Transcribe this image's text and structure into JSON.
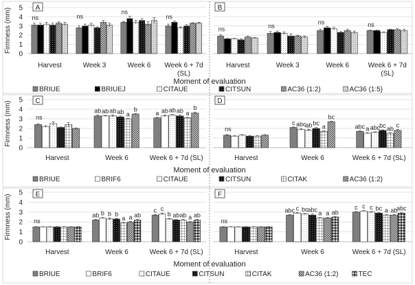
{
  "chart_data": {
    "type": "bar",
    "ylabel": "Firmness (mm)",
    "xlabel": "Moment of evaluation",
    "ylim": [
      0,
      5
    ],
    "yticks": [
      "0",
      "1",
      "2",
      "3",
      "4",
      "5"
    ],
    "grid": true,
    "legend_position": "bottom",
    "rows": [
      {
        "xlabel": "Moment of evaluation",
        "legend": [
          "BRIUE",
          "BRIUEJ",
          "CITAUE",
          "CITSUN",
          "AC36 (1:2)",
          "AC36 (1:5)"
        ],
        "panels": [
          {
            "label": "A",
            "categories": [
              "Harvest",
              "Week 3",
              "Week 6",
              "Week 6 + 7d (SL)"
            ],
            "series": [
              {
                "name": "BRIUE",
                "values": [
                  3.1,
                  2.8,
                  3.4,
                  3.0
                ],
                "errors": [
                  0.2,
                  0.2,
                  0.1,
                  0.2
                ]
              },
              {
                "name": "BRIUEJ",
                "values": [
                  3.1,
                  3.0,
                  3.8,
                  3.4
                ],
                "errors": [
                  0.2,
                  0.2,
                  0.25,
                  0.15
                ]
              },
              {
                "name": "CITAUE",
                "values": [
                  3.2,
                  3.1,
                  3.4,
                  2.8
                ],
                "errors": [
                  0.2,
                  0.2,
                  0.2,
                  0.1
                ]
              },
              {
                "name": "CITSUN",
                "values": [
                  3.1,
                  2.8,
                  3.6,
                  3.0
                ],
                "errors": [
                  0.2,
                  0.1,
                  0.2,
                  0.15
                ]
              },
              {
                "name": "AC36 (1:2)",
                "values": [
                  3.3,
                  3.4,
                  3.2,
                  3.3
                ],
                "errors": [
                  0.15,
                  0.2,
                  0.25,
                  0.05
                ]
              },
              {
                "name": "AC36 (1:5)",
                "values": [
                  3.2,
                  3.1,
                  3.6,
                  3.3
                ],
                "errors": [
                  0.2,
                  0.2,
                  0.3,
                  0.1
                ]
              }
            ],
            "annotations": [
              [
                "ns"
              ],
              [
                "ns"
              ],
              [
                "ns"
              ],
              [
                "ns"
              ]
            ]
          },
          {
            "label": "B",
            "categories": [
              "Harvest",
              "Week 3",
              "Week 6",
              "Week 6 + 7d (SL)"
            ],
            "series": [
              {
                "name": "BRIUE",
                "values": [
                  1.9,
                  2.2,
                  2.5,
                  2.5
                ],
                "errors": [
                  0.15,
                  0.2,
                  0.15,
                  0.05
                ]
              },
              {
                "name": "BRIUEJ",
                "values": [
                  1.6,
                  2.3,
                  2.8,
                  2.5
                ],
                "errors": [
                  0.05,
                  0.15,
                  0.15,
                  0.05
                ]
              },
              {
                "name": "CITAUE",
                "values": [
                  1.6,
                  2.2,
                  2.7,
                  2.3
                ],
                "errors": [
                  0.05,
                  0.15,
                  0.15,
                  0.05
                ]
              },
              {
                "name": "CITSUN",
                "values": [
                  1.5,
                  1.9,
                  2.3,
                  2.6
                ],
                "errors": [
                  0.1,
                  0.25,
                  0.1,
                  0.05
                ]
              },
              {
                "name": "AC36 (1:2)",
                "values": [
                  1.8,
                  1.9,
                  2.5,
                  2.6
                ],
                "errors": [
                  0.1,
                  0.1,
                  0.15,
                  0.1
                ]
              },
              {
                "name": "AC36 (1:5)",
                "values": [
                  1.7,
                  1.8,
                  2.3,
                  2.5
                ],
                "errors": [
                  0.05,
                  0.1,
                  0.15,
                  0.15
                ]
              }
            ],
            "annotations": [
              [
                "ns"
              ],
              [
                "ns"
              ],
              [
                "ns"
              ],
              [
                "ns"
              ]
            ]
          }
        ]
      },
      {
        "xlabel": "Moment of evaluation",
        "legend": [
          "BRIUE",
          "BRIF6",
          "CITAUE",
          "CITSUN",
          "CITAK",
          "AC36 (1:2)"
        ],
        "panels": [
          {
            "label": "C",
            "categories": [
              "Harvest",
              "Week 6",
              "Week 6 + 7d (SL)"
            ],
            "series": [
              {
                "name": "BRIUE",
                "values": [
                  2.4,
                  3.3,
                  3.1
                ],
                "errors": [
                  0.1,
                  0.1,
                  0.05
                ]
              },
              {
                "name": "BRIF6",
                "values": [
                  2.2,
                  3.3,
                  3.3
                ],
                "errors": [
                  0.1,
                  0.05,
                  0.1
                ]
              },
              {
                "name": "CITAUE",
                "values": [
                  2.5,
                  3.3,
                  3.4
                ],
                "errors": [
                  0.2,
                  0.1,
                  0.05
                ]
              },
              {
                "name": "CITSUN",
                "values": [
                  2.1,
                  3.2,
                  3.3
                ],
                "errors": [
                  0.05,
                  0.1,
                  0.1
                ]
              },
              {
                "name": "CITAK",
                "values": [
                  2.4,
                  3.0,
                  3.1
                ],
                "errors": [
                  0.2,
                  0.05,
                  0.05
                ]
              },
              {
                "name": "AC36 (1:2)",
                "values": [
                  2.0,
                  3.5,
                  3.6
                ],
                "errors": [
                  0.05,
                  0.05,
                  0.1
                ]
              }
            ],
            "annotations": [
              [
                "ns"
              ],
              [
                "ab",
                "ab",
                "ab",
                "ab",
                "a",
                "b"
              ],
              [
                "a",
                "ab",
                "ab",
                "ab",
                "a",
                "b"
              ]
            ]
          },
          {
            "label": "D",
            "categories": [
              "Harvest",
              "Week 6",
              "Week 6 + 7d (SL)"
            ],
            "series": [
              {
                "name": "BRIUE",
                "values": [
                  1.3,
                  2.1,
                  1.7
                ],
                "errors": [
                  0.05,
                  0.05,
                  0.05
                ]
              },
              {
                "name": "BRIF6",
                "values": [
                  1.2,
                  1.9,
                  1.5
                ],
                "errors": [
                  0.05,
                  0.1,
                  0.05
                ]
              },
              {
                "name": "CITAUE",
                "values": [
                  1.3,
                  1.8,
                  1.6
                ],
                "errors": [
                  0.05,
                  0.1,
                  0.05
                ]
              },
              {
                "name": "CITSUN",
                "values": [
                  1.2,
                  2.0,
                  1.8
                ],
                "errors": [
                  0.05,
                  0.1,
                  0.05
                ]
              },
              {
                "name": "CITAK",
                "values": [
                  1.2,
                  1.7,
                  1.5
                ],
                "errors": [
                  0.05,
                  0.05,
                  0.05
                ]
              },
              {
                "name": "AC36 (1:2)",
                "values": [
                  1.3,
                  2.7,
                  1.8
                ],
                "errors": [
                  0.05,
                  0.05,
                  0.1
                ]
              }
            ],
            "annotations": [
              [
                "ns"
              ],
              [
                "c",
                "abc",
                "ab",
                "bc",
                "a",
                "bc"
              ],
              [
                "abc",
                "a",
                "abc",
                "bc",
                "ab",
                "c"
              ]
            ]
          }
        ]
      },
      {
        "xlabel": "Moment of evaluation",
        "legend": [
          "BRIUE",
          "BRIF6",
          "CITAUE",
          "CITSUN",
          "CITAK",
          "AC36 (1:2)",
          "TEC"
        ],
        "panels": [
          {
            "label": "E",
            "categories": [
              "Harvest",
              "Week 6",
              "Week 6 + 7d (SL)"
            ],
            "series": [
              {
                "name": "BRIUE",
                "values": [
                  1.5,
                  2.2,
                  2.7
                ],
                "errors": [
                  0.03,
                  0.05,
                  0.05
                ]
              },
              {
                "name": "BRIF6",
                "values": [
                  1.5,
                  2.4,
                  2.8
                ],
                "errors": [
                  0.03,
                  0.05,
                  0.1
                ]
              },
              {
                "name": "CITAUE",
                "values": [
                  1.5,
                  2.3,
                  2.3
                ],
                "errors": [
                  0.03,
                  0.1,
                  0.05
                ]
              },
              {
                "name": "CITSUN",
                "values": [
                  1.5,
                  2.3,
                  2.2
                ],
                "errors": [
                  0.03,
                  0.05,
                  0.05
                ]
              },
              {
                "name": "CITAK",
                "values": [
                  1.5,
                  1.9,
                  2.2
                ],
                "errors": [
                  0.03,
                  0.05,
                  0.05
                ]
              },
              {
                "name": "AC36 (1:2)",
                "values": [
                  1.5,
                  2.0,
                  2.0
                ],
                "errors": [
                  0.03,
                  0.05,
                  0.05
                ]
              },
              {
                "name": "TEC",
                "values": [
                  1.5,
                  2.2,
                  2.2
                ],
                "errors": [
                  0.03,
                  0.05,
                  0.05
                ]
              }
            ],
            "annotations": [
              [
                "ns"
              ],
              [
                "ab",
                "b",
                "b",
                "b",
                "a",
                "a",
                "ab"
              ],
              [
                "c",
                "c",
                "b",
                "ab",
                "ab",
                "a",
                "ab"
              ]
            ]
          },
          {
            "label": "F",
            "categories": [
              "Harvest",
              "Week 6",
              "Week 6 + 7d (SL)"
            ],
            "series": [
              {
                "name": "BRIUE",
                "values": [
                  1.5,
                  2.7,
                  3.0
                ],
                "errors": [
                  0.03,
                  0.05,
                  0.05
                ]
              },
              {
                "name": "BRIF6",
                "values": [
                  1.5,
                  2.9,
                  3.1
                ],
                "errors": [
                  0.03,
                  0.05,
                  0.05
                ]
              },
              {
                "name": "CITAUE",
                "values": [
                  1.5,
                  2.8,
                  3.0
                ],
                "errors": [
                  0.03,
                  0.05,
                  0.05
                ]
              },
              {
                "name": "CITSUN",
                "values": [
                  1.5,
                  2.7,
                  2.9
                ],
                "errors": [
                  0.03,
                  0.1,
                  0.05
                ]
              },
              {
                "name": "CITAK",
                "values": [
                  1.5,
                  2.4,
                  2.7
                ],
                "errors": [
                  0.03,
                  0.05,
                  0.05
                ]
              },
              {
                "name": "AC36 (1:2)",
                "values": [
                  1.5,
                  2.4,
                  2.7
                ],
                "errors": [
                  0.03,
                  0.05,
                  0.05
                ]
              },
              {
                "name": "TEC",
                "values": [
                  1.5,
                  2.5,
                  2.9
                ],
                "errors": [
                  0.03,
                  0.05,
                  0.05
                ]
              }
            ],
            "annotations": [
              [
                "ns"
              ],
              [
                "abc",
                "c",
                "bc",
                "abc",
                "a",
                "a",
                "ab"
              ],
              [
                "c",
                "c",
                "c",
                "bc",
                "a",
                "ab",
                "abc"
              ]
            ]
          }
        ]
      }
    ]
  },
  "series_styles": {
    "BRIUE": {
      "fill": "#7f7f7f",
      "pattern": "solid"
    },
    "BRIUEJ": {
      "fill": "#000000",
      "pattern": "solid"
    },
    "BRIF6": {
      "fill": "#ffffff",
      "pattern": "solid"
    },
    "CITAUE": {
      "fill": "#ffffff",
      "pattern": "dots"
    },
    "CITSUN": {
      "fill": "#111111",
      "pattern": "darkdots"
    },
    "CITAK": {
      "fill": "#ffffff",
      "pattern": "grid"
    },
    "AC36 (1:2)": {
      "fill": "#bfbfbf",
      "pattern": "checker"
    },
    "AC36 (1:5)": {
      "fill": "#c8c8c8",
      "pattern": "lightdots"
    },
    "TEC": {
      "fill": "#333333",
      "pattern": "diamond"
    }
  }
}
